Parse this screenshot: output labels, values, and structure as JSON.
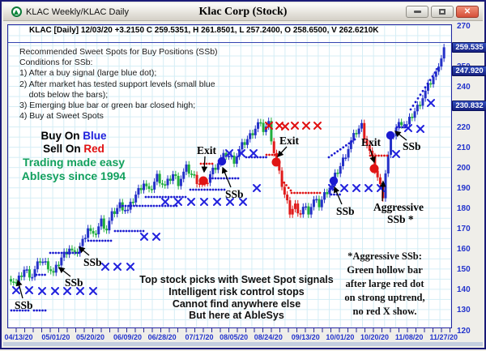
{
  "window": {
    "tab_title": "KLAC Weekly/KLAC Daily",
    "title": "Klac Corp (Stock)",
    "buttons": {
      "minimize": "minimize",
      "restore": "restore",
      "close": "✕"
    }
  },
  "info_bar": "KLAC [Daily] 12/03/20  +3.2150 C 259.5351, H 261.8501, L 257.2400, O 258.6500, V 262.6210K",
  "annotations": {
    "conditions": [
      "Recommended Sweet Spots for Buy Positions (SSb)",
      "Conditions for SSb:",
      "1) After a buy signal (large blue dot);",
      "2) After market has tested support levels (small blue",
      "    dots below the bars);",
      "3) Emerging blue bar or green bar closed high;",
      "4) Buy at Sweet Spots"
    ],
    "buy_on": "Buy On ",
    "blue_word": "Blue",
    "sell_on": "Sell On ",
    "red_word": "Red",
    "tagline1": "Trading made easy",
    "tagline2": "Ablesys since 1994",
    "bottom_center": [
      "Top stock picks with Sweet Spot signals",
      "Intelligent risk control stops",
      "Cannot find anywhere else",
      "But here at AbleSys"
    ],
    "aggressive_note": [
      "*Aggressive SSb:",
      "Green hollow bar",
      "after large red dot",
      "on strong uptrend,",
      "no red X show."
    ]
  },
  "colors": {
    "up_bar_blue": "#2431c8",
    "up_bar_green": "#1fae3c",
    "down_bar_red": "#e01b1b",
    "buy_dot": "#1b1bd0",
    "sell_dot": "#e01414",
    "axis_text": "#2233cc",
    "flag_bg": "#1b2b9b",
    "grid": "#d4edf5",
    "border_navy": "#2424a0",
    "tagline_green": "#12a05e"
  },
  "chart_data": {
    "type": "candlestick+signals",
    "symbol": "KLAC",
    "interval": "Daily",
    "last_bar": {
      "date": "12/03/20",
      "change": "+3.2150",
      "close": 259.5351,
      "high": 261.8501,
      "low": 257.24,
      "open": 258.65,
      "volume": "262.6210K"
    },
    "y_ticks": [
      270,
      260,
      250,
      240,
      230,
      220,
      210,
      200,
      190,
      180,
      170,
      160,
      150,
      140,
      130,
      120
    ],
    "y_range": [
      120,
      270
    ],
    "price_flags": [
      "259.535",
      "247.920",
      "230.832"
    ],
    "price_flag_values": [
      259.535,
      247.92,
      230.832
    ],
    "x_labels": [
      "04/13/20",
      "05/01/20",
      "05/20/20",
      "06/09/20",
      "06/28/20",
      "07/17/20",
      "08/05/20",
      "08/24/20",
      "09/13/20",
      "10/01/20",
      "10/20/20",
      "11/08/20",
      "11/27/20"
    ],
    "x_label_indices": [
      0,
      14,
      27,
      41,
      54,
      68,
      81,
      94,
      108,
      121,
      134,
      147,
      160
    ],
    "keyframes": [
      [
        0,
        146,
        "u"
      ],
      [
        2,
        143,
        "u"
      ],
      [
        5,
        150,
        "u"
      ],
      [
        8,
        147,
        "u"
      ],
      [
        11,
        155,
        "u"
      ],
      [
        14,
        152,
        "u"
      ],
      [
        16,
        148,
        "u"
      ],
      [
        19,
        156,
        "u"
      ],
      [
        22,
        161,
        "u"
      ],
      [
        24,
        157,
        "u"
      ],
      [
        27,
        164,
        "u"
      ],
      [
        29,
        171,
        "u"
      ],
      [
        31,
        166,
        "u"
      ],
      [
        34,
        174,
        "u"
      ],
      [
        36,
        170,
        "u"
      ],
      [
        38,
        177,
        "u"
      ],
      [
        41,
        182,
        "u"
      ],
      [
        44,
        179,
        "u"
      ],
      [
        47,
        187,
        "u"
      ],
      [
        50,
        193,
        "u"
      ],
      [
        52,
        188,
        "u"
      ],
      [
        55,
        196,
        "u"
      ],
      [
        58,
        191,
        "u"
      ],
      [
        61,
        197,
        "u"
      ],
      [
        63,
        193,
        "u"
      ],
      [
        66,
        200,
        "u"
      ],
      [
        68,
        197,
        "u"
      ],
      [
        70,
        194,
        "d"
      ],
      [
        73,
        191,
        "d"
      ],
      [
        75,
        197,
        "u"
      ],
      [
        78,
        203,
        "u"
      ],
      [
        81,
        207,
        "u"
      ],
      [
        84,
        204,
        "u"
      ],
      [
        87,
        211,
        "u"
      ],
      [
        90,
        216,
        "u"
      ],
      [
        93,
        222,
        "u"
      ],
      [
        95,
        219,
        "u"
      ],
      [
        97,
        222,
        "u"
      ],
      [
        99,
        208,
        "d"
      ],
      [
        101,
        197,
        "d"
      ],
      [
        103,
        187,
        "d"
      ],
      [
        105,
        179,
        "d"
      ],
      [
        107,
        182,
        "d"
      ],
      [
        108,
        176,
        "d"
      ],
      [
        110,
        181,
        "u"
      ],
      [
        112,
        179,
        "u"
      ],
      [
        114,
        184,
        "u"
      ],
      [
        116,
        182,
        "u"
      ],
      [
        118,
        187,
        "u"
      ],
      [
        120,
        191,
        "u"
      ],
      [
        122,
        196,
        "u"
      ],
      [
        124,
        201,
        "u"
      ],
      [
        126,
        207,
        "u"
      ],
      [
        128,
        213,
        "u"
      ],
      [
        130,
        218,
        "u"
      ],
      [
        132,
        221,
        "u"
      ],
      [
        133,
        216,
        "d"
      ],
      [
        135,
        208,
        "d"
      ],
      [
        137,
        200,
        "d"
      ],
      [
        139,
        191,
        "d"
      ],
      [
        140,
        187,
        "d"
      ],
      [
        141,
        198,
        "u"
      ],
      [
        143,
        214,
        "u"
      ],
      [
        145,
        220,
        "u"
      ],
      [
        147,
        223,
        "u"
      ],
      [
        149,
        221,
        "u"
      ],
      [
        151,
        226,
        "u"
      ],
      [
        153,
        230,
        "u"
      ],
      [
        155,
        235,
        "u"
      ],
      [
        157,
        240,
        "u"
      ],
      [
        159,
        245,
        "u"
      ],
      [
        161,
        250,
        "u"
      ],
      [
        162,
        254,
        "u"
      ],
      [
        163,
        259.5,
        "u"
      ]
    ],
    "signals": {
      "buy_dots": [
        [
          272,
          197
        ],
        [
          410,
          221
        ],
        [
          480,
          165
        ]
      ],
      "sell_dots": [
        [
          249,
          221
        ],
        [
          339,
          198
        ],
        [
          460,
          206
        ]
      ],
      "blue_x": [
        [
          18,
          356
        ],
        [
          34,
          356
        ],
        [
          50,
          357
        ],
        [
          66,
          357
        ],
        [
          81,
          357
        ],
        [
          97,
          357
        ],
        [
          113,
          357
        ],
        [
          128,
          327
        ],
        [
          143,
          327
        ],
        [
          159,
          327
        ],
        [
          176,
          290
        ],
        [
          191,
          290
        ],
        [
          202,
          247
        ],
        [
          218,
          247
        ],
        [
          234,
          247
        ],
        [
          250,
          247
        ],
        [
          266,
          247
        ],
        [
          282,
          247
        ],
        [
          298,
          247
        ],
        [
          281,
          187
        ],
        [
          296,
          187
        ],
        [
          311,
          187
        ],
        [
          315,
          230
        ],
        [
          408,
          230
        ],
        [
          423,
          230
        ],
        [
          438,
          230
        ],
        [
          453,
          230
        ],
        [
          468,
          230
        ],
        [
          487,
          188
        ],
        [
          502,
          156
        ],
        [
          517,
          157
        ],
        [
          530,
          125
        ]
      ],
      "red_x": [
        [
          330,
          153
        ],
        [
          343,
          153
        ],
        [
          350,
          154
        ],
        [
          362,
          153
        ],
        [
          376,
          153
        ],
        [
          390,
          153
        ]
      ],
      "blue_dot_runs": [
        [
          12,
          34,
          381
        ],
        [
          40,
          57,
          381
        ],
        [
          43,
          56,
          337
        ],
        [
          60,
          95,
          310
        ],
        [
          107,
          135,
          295
        ],
        [
          140,
          175,
          283
        ],
        [
          146,
          216,
          252
        ],
        [
          178,
          230,
          241
        ],
        [
          233,
          276,
          232
        ],
        [
          257,
          292,
          218
        ],
        [
          302,
          328,
          192
        ],
        [
          407,
          419,
          238
        ],
        [
          488,
          500,
          155
        ]
      ],
      "red_dot_runs": [
        [
          246,
          260,
          200
        ],
        [
          327,
          340,
          189
        ],
        [
          358,
          394,
          236
        ],
        [
          455,
          476,
          190
        ]
      ],
      "blue_dot_diagonals": [
        [
          404,
          192,
          436,
          170,
          10
        ],
        [
          505,
          133,
          538,
          83,
          12
        ]
      ],
      "red_dot_diagonals": [
        [
          346,
          220,
          357,
          233,
          5
        ]
      ],
      "labels": [
        {
          "t": "SSb",
          "x": 16,
          "y": 379,
          "a": [
            26,
            366,
            20,
            344
          ]
        },
        {
          "t": "SSb",
          "x": 78,
          "y": 351,
          "a": [
            85,
            339,
            71,
            328
          ]
        },
        {
          "t": "SSb",
          "x": 101,
          "y": 326,
          "a": [
            108,
            313,
            96,
            303
          ]
        },
        {
          "t": "SSb",
          "x": 276,
          "y": 242,
          "a": [
            283,
            229,
            273,
            205
          ]
        },
        {
          "t": "SSb",
          "x": 413,
          "y": 263,
          "a": [
            420,
            250,
            411,
            229
          ]
        },
        {
          "t": "SSb",
          "x": 495,
          "y": 183,
          "a": [
            500,
            171,
            486,
            160
          ]
        },
        {
          "t": "Exit",
          "x": 241,
          "y": 188,
          "a": [
            251,
            191,
            250,
            210
          ]
        },
        {
          "t": "Exit",
          "x": 343,
          "y": 176,
          "a": [
            352,
            179,
            341,
            191
          ]
        },
        {
          "t": "Exit",
          "x": 444,
          "y": 178,
          "a": [
            455,
            182,
            460,
            198
          ]
        },
        {
          "t": "Aggressive",
          "x": 459,
          "y": 258,
          "a": [
            470,
            246,
            471,
            222
          ]
        },
        {
          "t": "SSb *",
          "x": 476,
          "y": 273
        }
      ]
    }
  }
}
